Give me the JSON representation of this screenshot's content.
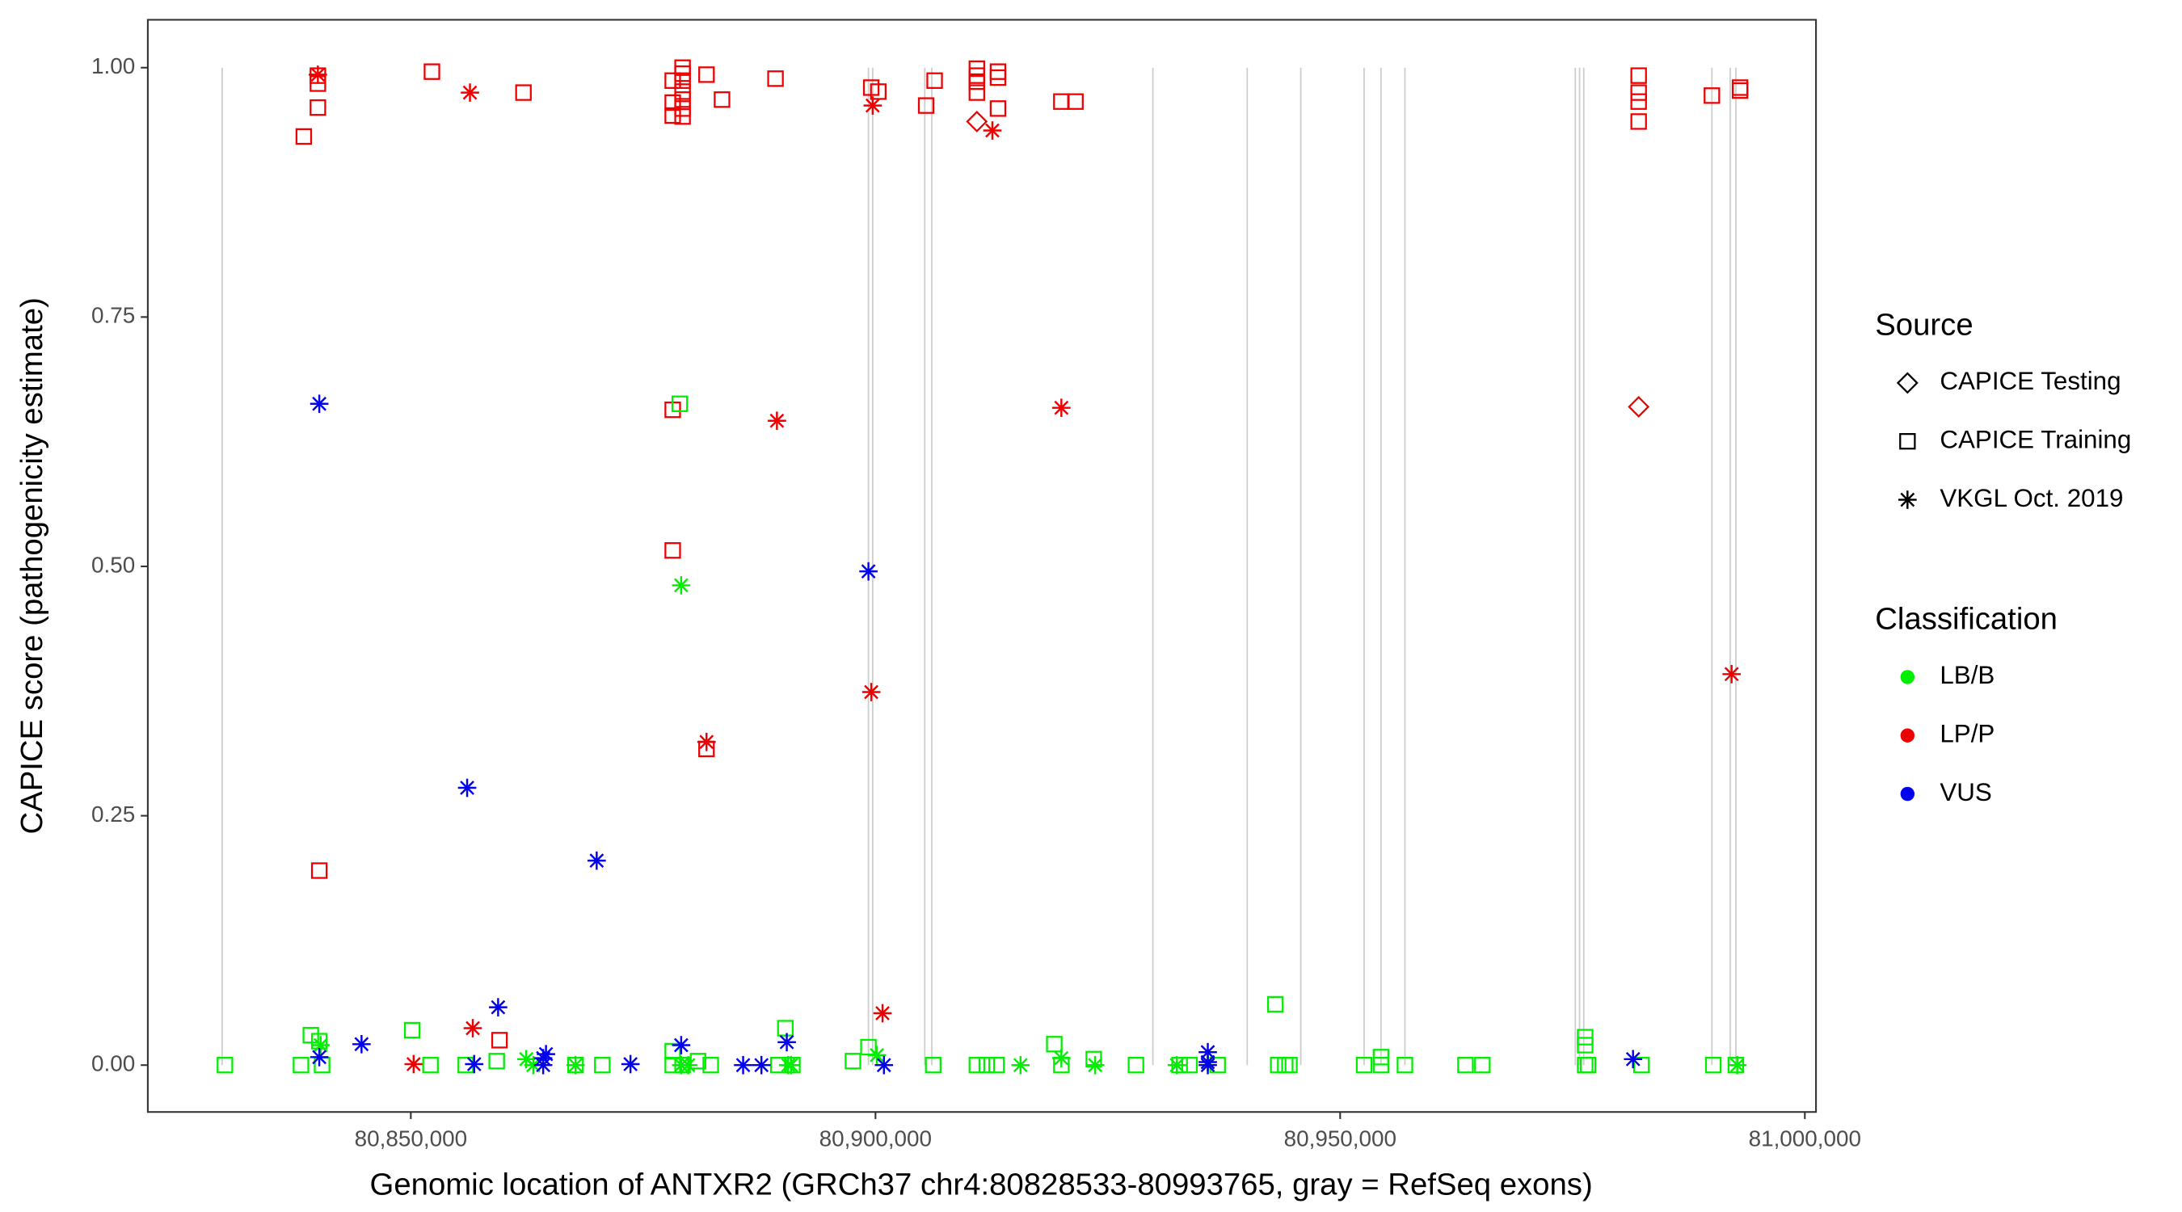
{
  "chart_data": {
    "type": "scatter",
    "x_label": "Genomic location of ANTXR2 (GRCh37 chr4:80828533-80993765, gray = RefSeq exons)",
    "y_label": "CAPICE score (pathogenicity estimate)",
    "xlim": [
      80821700,
      81001200
    ],
    "ylim": [
      -0.047,
      1.048
    ],
    "xticks": [
      {
        "value": 80850000,
        "label": "80,850,000"
      },
      {
        "value": 80900000,
        "label": "80,900,000"
      },
      {
        "value": 80950000,
        "label": "80,950,000"
      },
      {
        "value": 81000000,
        "label": "81,000,000"
      }
    ],
    "yticks": [
      {
        "value": 0,
        "label": "0.00"
      },
      {
        "value": 0.25,
        "label": "0.25"
      },
      {
        "value": 0.5,
        "label": "0.50"
      },
      {
        "value": 0.75,
        "label": "0.75"
      },
      {
        "value": 1,
        "label": "1.00"
      }
    ],
    "grid": false,
    "exon_color": "#cccccc",
    "exons": [
      80829700,
      80899242,
      80899697,
      80905303,
      80906061,
      80929848,
      80940000,
      80945758,
      80952576,
      80954394,
      80956970,
      80975303,
      80975758,
      80976212,
      80990000,
      80991970,
      80992576
    ],
    "source_legend_title": "Source",
    "sources": [
      {
        "name": "CAPICE Testing",
        "shape": "diamond"
      },
      {
        "name": "CAPICE Training",
        "shape": "square"
      },
      {
        "name": "VKGL Oct. 2019",
        "shape": "asterisk"
      }
    ],
    "classification_legend_title": "Classification",
    "classifications": [
      {
        "name": "LB/B",
        "color": "#00ee00"
      },
      {
        "name": "LP/P",
        "color": "#ee0000"
      },
      {
        "name": "VUS",
        "color": "#0000ee"
      }
    ],
    "groups": [
      {
        "source": "CAPICE Training",
        "classification": "LP/P",
        "x": [
          80838485,
          80840000,
          80840000,
          80840000,
          80840152,
          80852273,
          80862121,
          80859545,
          80878182,
          80878182,
          80878182,
          80878182,
          80878182,
          80879242,
          80879242,
          80879242,
          80879242,
          80879242,
          80879242,
          80879242,
          80881818,
          80881818,
          80883485,
          80889242,
          80899545,
          80900303,
          80905455,
          80906364,
          80910909,
          80910909,
          80910909,
          80910909,
          80913182,
          80913182,
          80913182,
          80920000,
          80921515,
          80982121,
          80982121,
          80982121,
          80982121,
          80990000,
          80993030,
          80993030
        ],
        "y": [
          0.931,
          0.992,
          0.984,
          0.96,
          0.195,
          0.996,
          0.975,
          0.025,
          0.987,
          0.965,
          0.952,
          0.657,
          0.516,
          1.0,
          0.994,
          0.987,
          0.976,
          0.968,
          0.959,
          0.951,
          0.993,
          0.317,
          0.968,
          0.989,
          0.98,
          0.976,
          0.962,
          0.987,
          0.999,
          0.992,
          0.986,
          0.975,
          0.996,
          0.99,
          0.959,
          0.966,
          0.966,
          0.992,
          0.975,
          0.966,
          0.946,
          0.972,
          0.98,
          0.977
        ]
      },
      {
        "source": "CAPICE Testing",
        "classification": "LP/P",
        "x": [
          80910909,
          80982121
        ],
        "y": [
          0.946,
          0.66
        ]
      },
      {
        "source": "VKGL Oct. 2019",
        "classification": "LP/P",
        "x": [
          80840000,
          80856364,
          80889394,
          80881818,
          80899697,
          80899545,
          80900758,
          80912576,
          80920000,
          80992121,
          80850303,
          80856667
        ],
        "y": [
          0.993,
          0.975,
          0.646,
          0.324,
          0.962,
          0.374,
          0.052,
          0.937,
          0.659,
          0.392,
          0.001,
          0.037
        ]
      },
      {
        "source": "CAPICE Training",
        "classification": "LB/B",
        "x": [
          80830000,
          80838182,
          80839242,
          80840152,
          80840455,
          80850152,
          80852121,
          80855909,
          80859242,
          80867727,
          80870606,
          80878182,
          80878182,
          80879242,
          80878939,
          80880909,
          80882273,
          80889545,
          80890303,
          80891061,
          80897576,
          80899242,
          80906212,
          80910909,
          80911970,
          80913030,
          80919242,
          80920000,
          80923485,
          80928030,
          80932727,
          80933788,
          80936818,
          80943030,
          80943333,
          80944091,
          80944545,
          80952576,
          80954394,
          80954394,
          80956970,
          80963485,
          80965303,
          80976364,
          80976364,
          80976364,
          80976667,
          80982424,
          80990152,
          80992576
        ],
        "y": [
          0,
          0,
          0.03,
          0.024,
          0,
          0.035,
          0,
          0,
          0.004,
          0,
          0,
          0.014,
          0,
          0,
          0.663,
          0.004,
          0,
          0,
          0.037,
          0,
          0.004,
          0.018,
          0,
          0,
          0,
          0,
          0.021,
          0,
          0.006,
          0,
          0,
          0,
          0,
          0.061,
          0,
          0,
          0,
          0,
          0.008,
          0,
          0,
          0,
          0,
          0.028,
          0.02,
          0,
          0,
          0,
          0,
          0
        ]
      },
      {
        "source": "VKGL Oct. 2019",
        "classification": "LB/B",
        "x": [
          80879091,
          80840303,
          80862424,
          80863182,
          80867727,
          80879091,
          80879848,
          80890606,
          80890909,
          80900152,
          80915606,
          80920000,
          80923636,
          80932424,
          80992727
        ],
        "y": [
          0.481,
          0.02,
          0.006,
          0,
          0,
          0,
          0,
          0,
          0,
          0.01,
          0,
          0.007,
          0,
          0,
          0
        ]
      },
      {
        "source": "VKGL Oct. 2019",
        "classification": "VUS",
        "x": [
          80840152,
          80856061,
          80870000,
          80899242,
          80859394,
          80840152,
          80844697,
          80856818,
          80864242,
          80864545,
          80864242,
          80873636,
          80879091,
          80885758,
          80887727,
          80890455,
          80900909,
          80935758,
          80935758,
          80935758,
          80981515
        ],
        "y": [
          0.663,
          0.278,
          0.205,
          0.495,
          0.058,
          0.008,
          0.021,
          0.001,
          0.007,
          0.011,
          0,
          0.001,
          0.02,
          0,
          0,
          0.023,
          0,
          0.013,
          0.003,
          0,
          0.006
        ]
      }
    ]
  }
}
